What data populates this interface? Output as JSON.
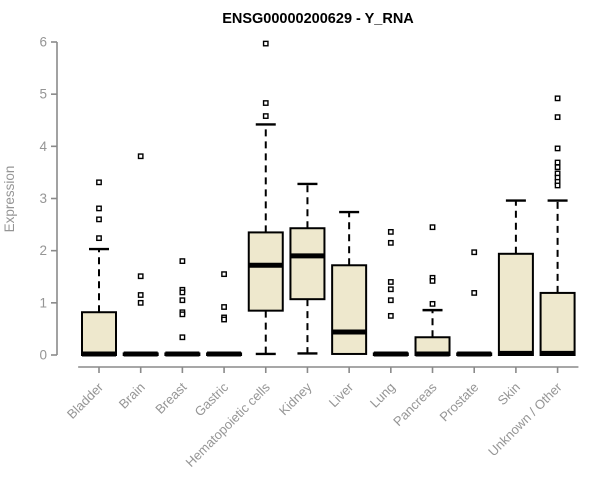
{
  "chart_data": {
    "type": "boxplot",
    "title": "ENSG00000200629 - Y_RNA",
    "ylabel": "Expression",
    "xlabel": "",
    "ylim": [
      0,
      6
    ],
    "yticks": [
      0,
      1,
      2,
      3,
      4,
      5,
      6
    ],
    "grid": false,
    "legend": false,
    "box_fill": "#EEE8CD",
    "box_stroke": "#000000",
    "median_color": "#000000",
    "whisker_color": "#000000",
    "outlier_stroke": "#000000",
    "outlier_fill": "#ffffff",
    "axis_color": "#8a8a8a",
    "tick_label_color": "#959595",
    "title_color": "#000000",
    "categories": [
      "Bladder",
      "Brain",
      "Breast",
      "Gastric",
      "Hematopoietic cells",
      "Kidney",
      "Liver",
      "Lung",
      "Pancreas",
      "Prostate",
      "Skin",
      "Unknown / Other"
    ],
    "series": [
      {
        "category": "Bladder",
        "q1": 0,
        "median": 0.02,
        "q3": 0.82,
        "whisker_low": 0,
        "whisker_high": 2.03,
        "outliers": [
          2.24,
          2.6,
          2.81,
          3.31
        ]
      },
      {
        "category": "Brain",
        "q1": 0,
        "median": 0.02,
        "q3": 0.03,
        "whisker_low": 0,
        "whisker_high": 0.03,
        "outliers": [
          3.81,
          1.51,
          1.15,
          1.0
        ]
      },
      {
        "category": "Breast",
        "q1": 0,
        "median": 0.02,
        "q3": 0.03,
        "whisker_low": 0,
        "whisker_high": 0.03,
        "outliers": [
          1.8,
          1.25,
          1.2,
          1.05,
          0.82,
          0.78,
          0.34
        ]
      },
      {
        "category": "Gastric",
        "q1": 0,
        "median": 0.02,
        "q3": 0.03,
        "whisker_low": 0,
        "whisker_high": 0.03,
        "outliers": [
          1.55,
          0.92,
          0.72,
          0.68
        ]
      },
      {
        "category": "Hematopoietic cells",
        "q1": 0.85,
        "median": 1.72,
        "q3": 2.35,
        "whisker_low": 0.02,
        "whisker_high": 4.42,
        "outliers": [
          5.97,
          4.83,
          4.58
        ]
      },
      {
        "category": "Kidney",
        "q1": 1.07,
        "median": 1.9,
        "q3": 2.43,
        "whisker_low": 0.03,
        "whisker_high": 3.28,
        "outliers": []
      },
      {
        "category": "Liver",
        "q1": 0.02,
        "median": 0.44,
        "q3": 1.72,
        "whisker_low": 0,
        "whisker_high": 2.74,
        "outliers": []
      },
      {
        "category": "Lung",
        "q1": 0,
        "median": 0.02,
        "q3": 0.03,
        "whisker_low": 0,
        "whisker_high": 0.03,
        "outliers": [
          2.36,
          2.15,
          1.4,
          1.26,
          1.05,
          0.75
        ]
      },
      {
        "category": "Pancreas",
        "q1": 0,
        "median": 0.02,
        "q3": 0.34,
        "whisker_low": 0,
        "whisker_high": 0.86,
        "outliers": [
          2.45,
          1.48,
          1.42,
          0.98
        ]
      },
      {
        "category": "Prostate",
        "q1": 0,
        "median": 0.02,
        "q3": 0.03,
        "whisker_low": 0,
        "whisker_high": 0.03,
        "outliers": [
          1.97,
          1.19
        ]
      },
      {
        "category": "Skin",
        "q1": 0,
        "median": 0.03,
        "q3": 1.94,
        "whisker_low": 0,
        "whisker_high": 2.96,
        "outliers": []
      },
      {
        "category": "Unknown / Other",
        "q1": 0,
        "median": 0.03,
        "q3": 1.19,
        "whisker_low": 0,
        "whisker_high": 2.96,
        "outliers": [
          4.92,
          4.56,
          3.96,
          3.69,
          3.6,
          3.48,
          3.4,
          3.32,
          3.25
        ]
      }
    ]
  }
}
